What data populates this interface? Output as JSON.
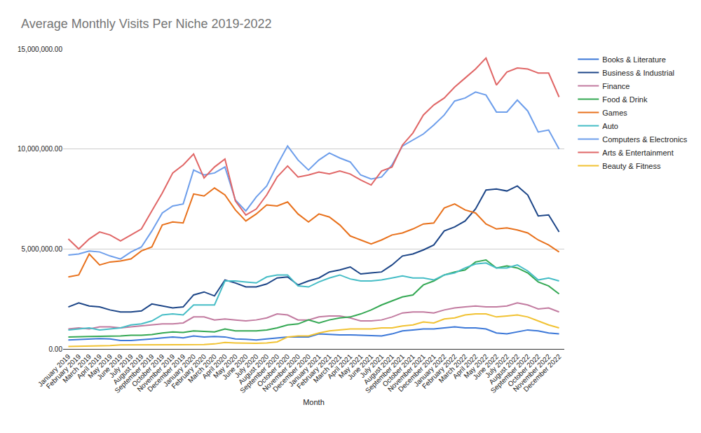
{
  "chart_data": {
    "type": "line",
    "title": "Average Monthly Visits Per Niche 2019-2022",
    "x_label": "Month",
    "categories": [
      "January 2019",
      "February 2019",
      "March 2019",
      "April 2019",
      "May 2019",
      "June 2019",
      "July 2019",
      "August 2019",
      "September 2019",
      "October 2019",
      "November 2019",
      "December 2019",
      "January 2020",
      "February 2020",
      "March 2020",
      "April 2020",
      "May 2020",
      "June 2020",
      "July 2020",
      "August 2020",
      "September 2020",
      "October 2020",
      "November 2020",
      "December 2020",
      "January 2021",
      "February 2021",
      "March 2021",
      "April 2021",
      "May 2021",
      "June 2021",
      "July 2021",
      "August 2021",
      "September 2021",
      "October 2021",
      "November 2021",
      "December 2021",
      "January 2022",
      "February 2022",
      "March 2022",
      "April 2022",
      "May 2022",
      "June 2022",
      "July 2022",
      "August 2022",
      "September 2022",
      "October 2022",
      "November 2022",
      "December 2022"
    ],
    "ylim": [
      0,
      15000000
    ],
    "yticks": [
      {
        "value": 0,
        "label": "0.00"
      },
      {
        "value": 5000000,
        "label": "5,000,000.00"
      },
      {
        "value": 10000000,
        "label": "10,000,000.00"
      },
      {
        "value": 15000000,
        "label": "15,000,000.00"
      }
    ],
    "grid": true,
    "legend": "top right",
    "series": [
      {
        "name": "Books & Literature",
        "color": "#3c78d8",
        "values": [
          450000,
          480000,
          500000,
          520000,
          500000,
          420000,
          420000,
          450000,
          500000,
          550000,
          600000,
          550000,
          650000,
          600000,
          620000,
          600000,
          500000,
          480000,
          450000,
          500000,
          550000,
          600000,
          600000,
          600000,
          750000,
          720000,
          700000,
          700000,
          680000,
          650000,
          650000,
          750000,
          900000,
          950000,
          1000000,
          1000000,
          1050000,
          1100000,
          1050000,
          1050000,
          1000000,
          800000,
          750000,
          850000,
          950000,
          900000,
          800000,
          750000
        ]
      },
      {
        "name": "Business & Industrial",
        "color": "#1c4587",
        "values": [
          2100000,
          2300000,
          2150000,
          2100000,
          1950000,
          1850000,
          1850000,
          1900000,
          2250000,
          2150000,
          2050000,
          2100000,
          2700000,
          2850000,
          2650000,
          3450000,
          3300000,
          3100000,
          3100000,
          3250000,
          3550000,
          3600000,
          3200000,
          3400000,
          3550000,
          3850000,
          3950000,
          4100000,
          3750000,
          3800000,
          3850000,
          4200000,
          4650000,
          4750000,
          4950000,
          5200000,
          5900000,
          6100000,
          6400000,
          7000000,
          7950000,
          8000000,
          7900000,
          8150000,
          7700000,
          6650000,
          6700000,
          5850000
        ]
      },
      {
        "name": "Finance",
        "color": "#c27ba0",
        "values": [
          1000000,
          1050000,
          1000000,
          1100000,
          1100000,
          1050000,
          1100000,
          1150000,
          1200000,
          1250000,
          1250000,
          1300000,
          1600000,
          1600000,
          1450000,
          1500000,
          1450000,
          1400000,
          1450000,
          1550000,
          1750000,
          1700000,
          1450000,
          1450000,
          1600000,
          1650000,
          1650000,
          1550000,
          1400000,
          1400000,
          1450000,
          1600000,
          1800000,
          1850000,
          1850000,
          1800000,
          1950000,
          2050000,
          2100000,
          2150000,
          2100000,
          2100000,
          2150000,
          2300000,
          2200000,
          2000000,
          2050000,
          1850000
        ]
      },
      {
        "name": "Food & Drink",
        "color": "#34a853",
        "values": [
          600000,
          600000,
          620000,
          630000,
          630000,
          650000,
          680000,
          680000,
          720000,
          800000,
          850000,
          820000,
          900000,
          880000,
          850000,
          1000000,
          900000,
          900000,
          900000,
          950000,
          1050000,
          1200000,
          1250000,
          1450000,
          1300000,
          1450000,
          1550000,
          1600000,
          1750000,
          1950000,
          2200000,
          2400000,
          2600000,
          2700000,
          3200000,
          3400000,
          3700000,
          3850000,
          3950000,
          4350000,
          4450000,
          4050000,
          4150000,
          4050000,
          3800000,
          3350000,
          3150000,
          2750000
        ]
      },
      {
        "name": "Games",
        "color": "#e8711c",
        "values": [
          3600000,
          3700000,
          4750000,
          4200000,
          4350000,
          4400000,
          4500000,
          4900000,
          5100000,
          6200000,
          6350000,
          6300000,
          7750000,
          7650000,
          8050000,
          7700000,
          6950000,
          6400000,
          6750000,
          7200000,
          7150000,
          7350000,
          6750000,
          6350000,
          6750000,
          6600000,
          6200000,
          5650000,
          5450000,
          5250000,
          5450000,
          5700000,
          5800000,
          6000000,
          6250000,
          6300000,
          7050000,
          7250000,
          6950000,
          6800000,
          6250000,
          6000000,
          6050000,
          5950000,
          5800000,
          5450000,
          5200000,
          4850000
        ]
      },
      {
        "name": "Auto",
        "color": "#46bdc6",
        "values": [
          950000,
          1000000,
          1050000,
          950000,
          1000000,
          1050000,
          1200000,
          1250000,
          1400000,
          1700000,
          1750000,
          1700000,
          2200000,
          2200000,
          2200000,
          3400000,
          3400000,
          3350000,
          3300000,
          3600000,
          3700000,
          3700000,
          3150000,
          3100000,
          3350000,
          3550000,
          3700000,
          3500000,
          3400000,
          3400000,
          3450000,
          3550000,
          3650000,
          3550000,
          3550000,
          3450000,
          3700000,
          3800000,
          4050000,
          4250000,
          4300000,
          4050000,
          4050000,
          4200000,
          3900000,
          3450000,
          3550000,
          3400000
        ]
      },
      {
        "name": "Computers & Electronics",
        "color": "#6d9eeb",
        "values": [
          4700000,
          4750000,
          4900000,
          4850000,
          4650000,
          4500000,
          4850000,
          5100000,
          5900000,
          6800000,
          7150000,
          7250000,
          8950000,
          8700000,
          8800000,
          9100000,
          7450000,
          6900000,
          7600000,
          8150000,
          9200000,
          10150000,
          9450000,
          8950000,
          9450000,
          9800000,
          9550000,
          9350000,
          8700000,
          8500000,
          8600000,
          9200000,
          10150000,
          10450000,
          10750000,
          11200000,
          11700000,
          12400000,
          12550000,
          12850000,
          12700000,
          11850000,
          11850000,
          12450000,
          11900000,
          10850000,
          10950000,
          10000000
        ]
      },
      {
        "name": "Arts & Entertainment",
        "color": "#e06666",
        "values": [
          5500000,
          5000000,
          5500000,
          5850000,
          5700000,
          5400000,
          5700000,
          6000000,
          6900000,
          7800000,
          8800000,
          9200000,
          9750000,
          8550000,
          9100000,
          9500000,
          7400000,
          6700000,
          7000000,
          7700000,
          8600000,
          9150000,
          8600000,
          8700000,
          8850000,
          8750000,
          8900000,
          8750000,
          8450000,
          8200000,
          8900000,
          9100000,
          10200000,
          10800000,
          11700000,
          12200000,
          12550000,
          13100000,
          13550000,
          14000000,
          14550000,
          13200000,
          13850000,
          14050000,
          14000000,
          13800000,
          13800000,
          12600000
        ]
      },
      {
        "name": "Beauty & Fitness",
        "color": "#f1c232",
        "values": [
          120000,
          130000,
          150000,
          150000,
          170000,
          200000,
          200000,
          220000,
          220000,
          220000,
          220000,
          200000,
          220000,
          220000,
          250000,
          320000,
          300000,
          280000,
          280000,
          300000,
          350000,
          600000,
          650000,
          650000,
          800000,
          900000,
          950000,
          1000000,
          1000000,
          1000000,
          1050000,
          1050000,
          1150000,
          1200000,
          1350000,
          1300000,
          1500000,
          1550000,
          1700000,
          1750000,
          1750000,
          1600000,
          1650000,
          1700000,
          1600000,
          1400000,
          1200000,
          1050000
        ]
      }
    ]
  }
}
